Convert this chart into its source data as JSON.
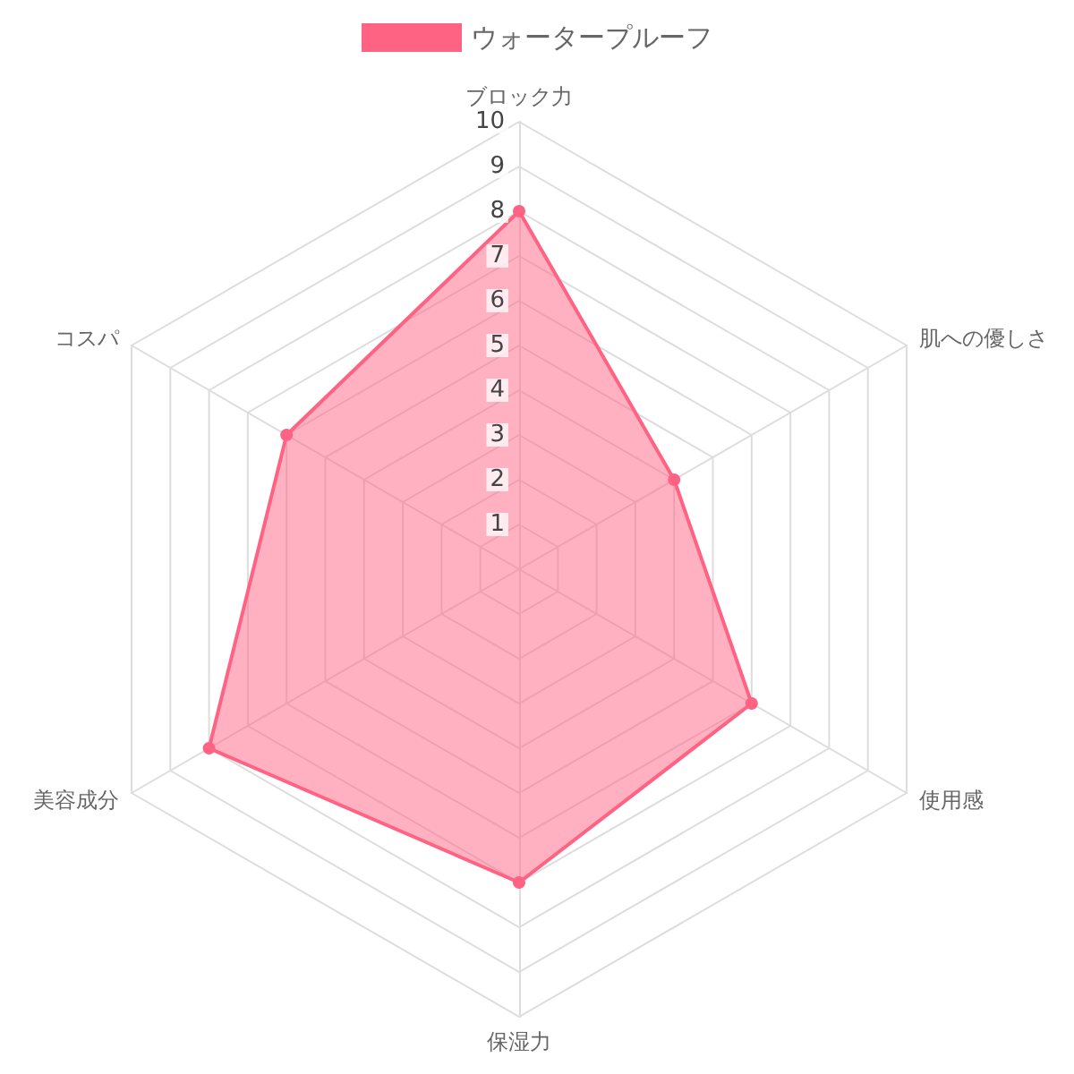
{
  "chart_data": {
    "type": "radar",
    "categories": [
      "ブロック力",
      "肌への優しさ",
      "使用感",
      "保湿力",
      "美容成分",
      "コスパ"
    ],
    "series": [
      {
        "name": "ウォータープルーフ",
        "color": "#ff6384",
        "values": [
          8,
          4,
          6,
          7,
          8,
          6
        ]
      }
    ],
    "ylim": [
      0,
      10
    ],
    "yticks": [
      1,
      2,
      3,
      4,
      5,
      6,
      7,
      8,
      9,
      10
    ],
    "legend": "top",
    "grid": true,
    "marker": "circle"
  }
}
